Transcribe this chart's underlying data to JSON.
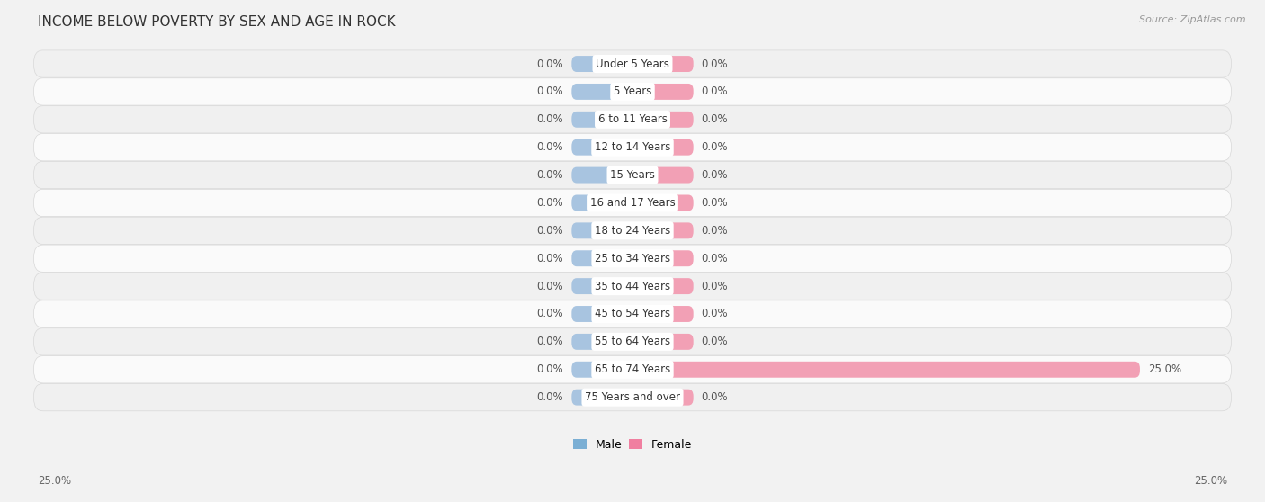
{
  "title": "INCOME BELOW POVERTY BY SEX AND AGE IN ROCK",
  "source": "Source: ZipAtlas.com",
  "categories": [
    "Under 5 Years",
    "5 Years",
    "6 to 11 Years",
    "12 to 14 Years",
    "15 Years",
    "16 and 17 Years",
    "18 to 24 Years",
    "25 to 34 Years",
    "35 to 44 Years",
    "45 to 54 Years",
    "55 to 64 Years",
    "65 to 74 Years",
    "75 Years and over"
  ],
  "male_values": [
    0.0,
    0.0,
    0.0,
    0.0,
    0.0,
    0.0,
    0.0,
    0.0,
    0.0,
    0.0,
    0.0,
    0.0,
    0.0
  ],
  "female_values": [
    0.0,
    0.0,
    0.0,
    0.0,
    0.0,
    0.0,
    0.0,
    0.0,
    0.0,
    0.0,
    0.0,
    25.0,
    0.0
  ],
  "male_color": "#a8c4e0",
  "female_color": "#f2a0b5",
  "row_colors": [
    "#f0f0f0",
    "#fafafa"
  ],
  "x_max": 25.0,
  "title_fontsize": 11,
  "label_fontsize": 8.5,
  "value_fontsize": 8.5,
  "source_fontsize": 8,
  "legend_fontsize": 9,
  "male_legend_color": "#7bafd4",
  "female_legend_color": "#f07fa0"
}
